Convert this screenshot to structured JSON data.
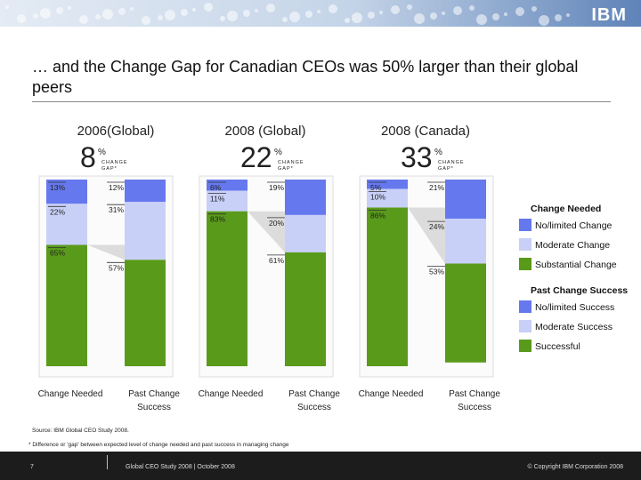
{
  "header": {
    "logo": "IBM"
  },
  "title": "… and the Change Gap for Canadian CEOs was 50% larger than their global peers",
  "colors": {
    "substantial": "#5a9a1a",
    "moderate": "#c8d0f8",
    "limited": "#6678ee",
    "gap": "#dcdcdc"
  },
  "chart_data": {
    "type": "bar",
    "layout": "three paired 100% stacked columns",
    "panels": [
      {
        "title": "2006(Global)",
        "gap_value": "8",
        "gap_unit": "%",
        "gap_label": "CHANGE GAP*",
        "categories": [
          "Change Needed",
          "Past Change Success"
        ],
        "series": [
          {
            "name": "No/limited",
            "values": [
              13,
              12
            ]
          },
          {
            "name": "Moderate",
            "values": [
              22,
              31
            ]
          },
          {
            "name": "Substantial / Successful",
            "values": [
              65,
              57
            ]
          }
        ],
        "labels": [
          [
            "13%",
            "22%",
            "65%"
          ],
          [
            "12%",
            "31%",
            "57%"
          ]
        ]
      },
      {
        "title": "2008 (Global)",
        "gap_value": "22",
        "gap_unit": "%",
        "gap_label": "CHANGE GAP*",
        "categories": [
          "Change Needed",
          "Past Change Success"
        ],
        "series": [
          {
            "name": "No/limited",
            "values": [
              6,
              19
            ]
          },
          {
            "name": "Moderate",
            "values": [
              11,
              20
            ]
          },
          {
            "name": "Substantial / Successful",
            "values": [
              83,
              61
            ]
          }
        ],
        "labels": [
          [
            "6%",
            "11%",
            "83%"
          ],
          [
            "19%",
            "20%",
            "61%"
          ]
        ]
      },
      {
        "title": "2008 (Canada)",
        "gap_value": "33",
        "gap_unit": "%",
        "gap_label": "CHANGE GAP*",
        "categories": [
          "Change Needed",
          "Past Change Success"
        ],
        "series": [
          {
            "name": "No/limited",
            "values": [
              5,
              21
            ]
          },
          {
            "name": "Moderate",
            "values": [
              10,
              24
            ]
          },
          {
            "name": "Substantial / Successful",
            "values": [
              86,
              53
            ]
          }
        ],
        "labels": [
          [
            "5%",
            "10%",
            "86%"
          ],
          [
            "21%",
            "24%",
            "53%"
          ]
        ]
      }
    ],
    "x_labels": [
      "Change Needed",
      "Past Change",
      "Success"
    ],
    "legend": {
      "groups": [
        {
          "title": "Change Needed",
          "items": [
            "No/limited Change",
            "Moderate Change",
            "Substantial Change"
          ]
        },
        {
          "title": "Past Change Success",
          "items": [
            "No/limited Success",
            "Moderate Success",
            "Successful"
          ]
        }
      ]
    }
  },
  "source": "Source: IBM Global CEO Study 2008.",
  "footnote": "* Difference or 'gap' between expected level of change needed and past success in managing change",
  "footer": {
    "page": "7",
    "center": "Global CEO Study 2008 | October 2008",
    "right": "© Copyright IBM Corporation 2008"
  }
}
